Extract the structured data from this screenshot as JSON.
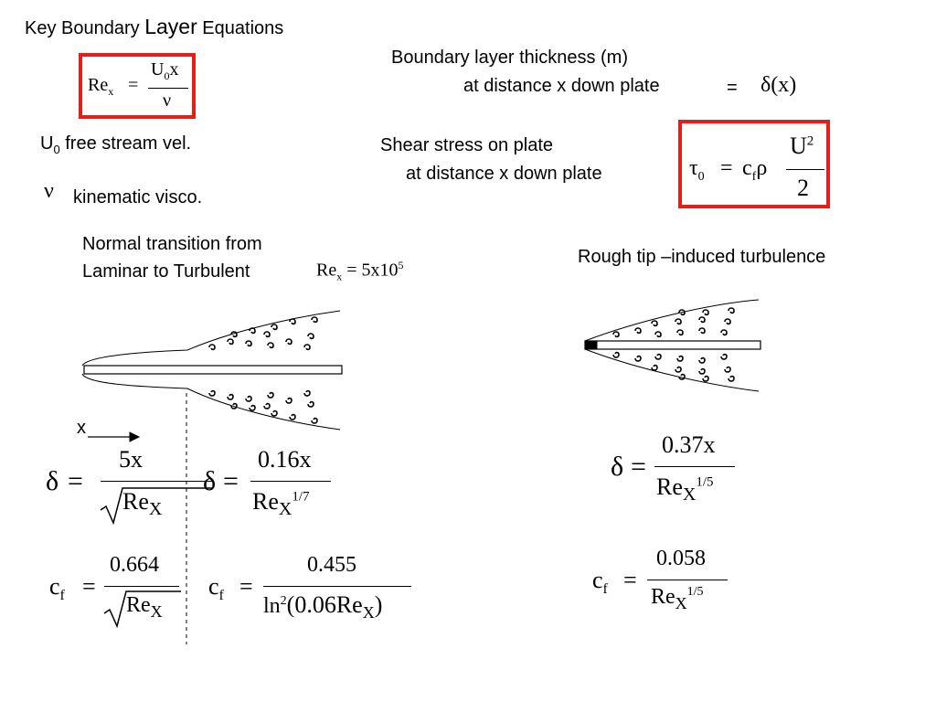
{
  "title": {
    "pre": "Key Boundary ",
    "mid": "Layer",
    "post": " Equations"
  },
  "reynolds": {
    "lhs": "Re",
    "lhs_sub": "x",
    "eq": "=",
    "num_a": "U",
    "num_sub": "0",
    "num_b": "x",
    "den": "ν"
  },
  "legend": {
    "u0_sym": "U",
    "u0_sub": "0",
    "u0_text": " free stream vel.",
    "nu_sym": "ν",
    "nu_text": "kinematic visco."
  },
  "thickness": {
    "line1": "Boundary layer thickness (m)",
    "line2": "at distance x down plate",
    "eq": "=",
    "expr": "δ(x)"
  },
  "shear": {
    "line1": "Shear stress on plate",
    "line2": "at distance x down plate",
    "lhs": "τ",
    "lhs_sub": "0",
    "eq": "=",
    "cf": "c",
    "cf_sub": "f",
    "rho": "ρ",
    "num": "U",
    "num_sup": "2",
    "den": "2"
  },
  "transition": {
    "line1": "Normal transition from",
    "line2": "Laminar to Turbulent",
    "re": "Re",
    "re_sub": "x",
    "eq": "= 5x10",
    "sup": "5"
  },
  "rough": {
    "label": "Rough tip –induced turbulence"
  },
  "x_axis": {
    "label": "x"
  },
  "eq_laminar_delta": {
    "lhs": "δ",
    "eq": "=",
    "num": "5x",
    "den": "Re",
    "den_sub": "X"
  },
  "eq_turb_delta": {
    "lhs": "δ",
    "eq": "=",
    "num": "0.16x",
    "den": "Re",
    "den_sub": "X",
    "den_sup": "1/7"
  },
  "eq_laminar_cf": {
    "lhs": "c",
    "lhs_sub": "f",
    "eq": "=",
    "num": "0.664",
    "den": "Re",
    "den_sub": "X"
  },
  "eq_turb_cf": {
    "lhs": "c",
    "lhs_sub": "f",
    "eq": "=",
    "num": "0.455",
    "den_a": "ln",
    "den_sup": "2",
    "den_b": "(0.06Re",
    "den_sub": "X",
    "den_c": ")"
  },
  "eq_rough_delta": {
    "lhs": "δ",
    "eq": "=",
    "num": "0.37x",
    "den": "Re",
    "den_sub": "X",
    "den_sup": "1/5"
  },
  "eq_rough_cf": {
    "lhs": "c",
    "lhs_sub": "f",
    "eq": "=",
    "num": "0.058",
    "den": "Re",
    "den_sub": "X",
    "den_sup": "1/5"
  },
  "colors": {
    "highlight_box": "#e0201b",
    "ink": "#000000"
  }
}
